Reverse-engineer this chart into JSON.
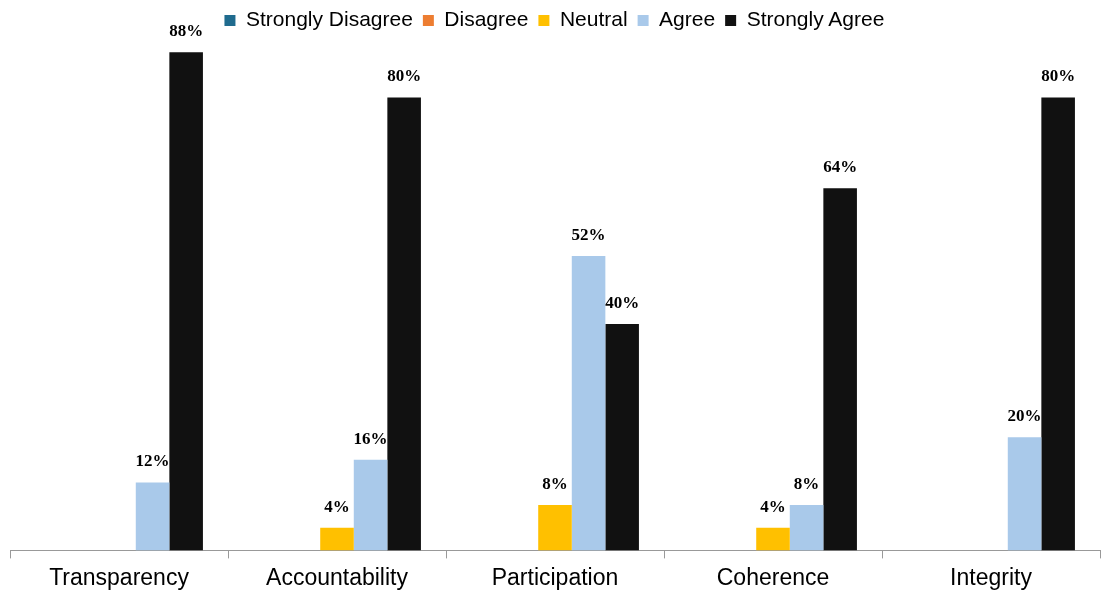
{
  "chart_data": {
    "type": "bar",
    "categories": [
      "Transparency",
      "Accountability",
      "Participation",
      "Coherence",
      "Integrity"
    ],
    "series": [
      {
        "name": "Strongly Disagree",
        "color": "#1f6b8e",
        "values": [
          0,
          0,
          0,
          0,
          0
        ],
        "value_labels": [
          null,
          null,
          null,
          null,
          null
        ]
      },
      {
        "name": "Disagree",
        "color": "#ed7d31",
        "values": [
          0,
          0,
          0,
          0,
          0
        ],
        "value_labels": [
          null,
          null,
          null,
          null,
          null
        ]
      },
      {
        "name": "Neutral",
        "color": "#ffc000",
        "values": [
          0,
          4,
          8,
          4,
          0
        ],
        "value_labels": [
          null,
          "4%",
          "8%",
          "4%",
          null
        ]
      },
      {
        "name": "Agree",
        "color": "#a9c9ea",
        "values": [
          12,
          16,
          52,
          8,
          20
        ],
        "value_labels": [
          "12%",
          "16%",
          "52%",
          "8%",
          "20%"
        ]
      },
      {
        "name": "Strongly Agree",
        "color": "#111111",
        "values": [
          88,
          80,
          40,
          64,
          80
        ],
        "value_labels": [
          "88%",
          "80%",
          "40%",
          "64%",
          "80%"
        ]
      }
    ],
    "tick_labels": "x",
    "legend": "top"
  }
}
